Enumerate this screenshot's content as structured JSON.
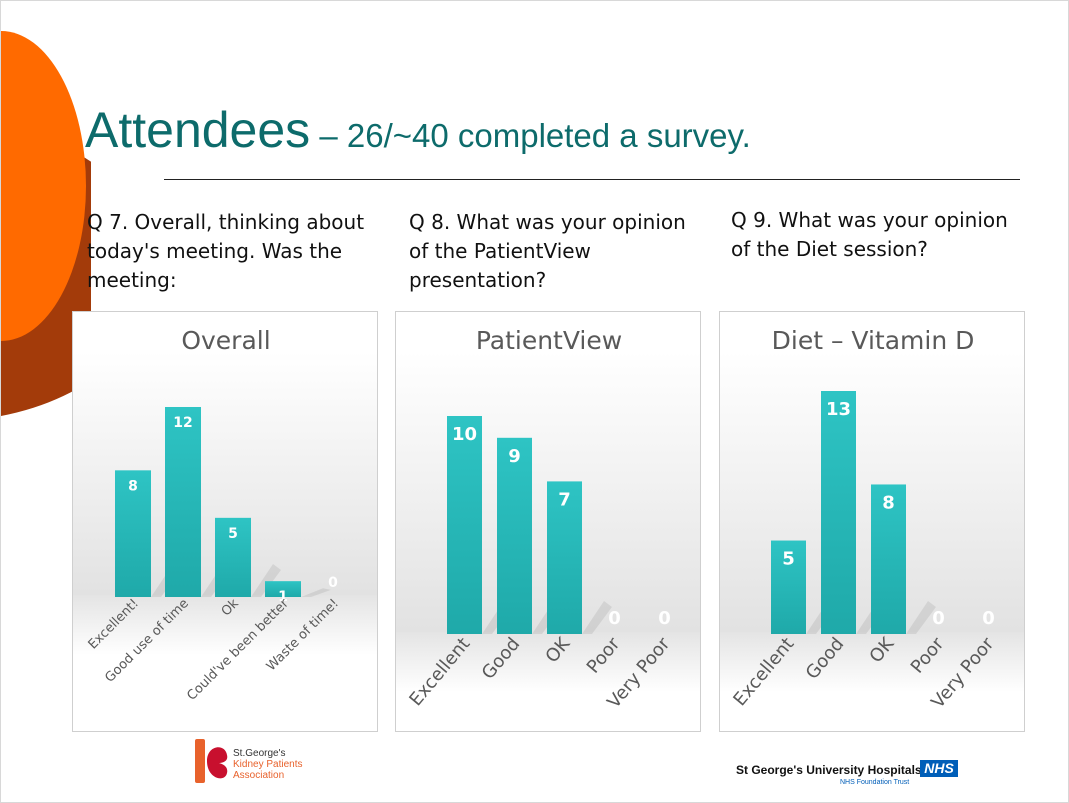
{
  "slide": {
    "title_main": "Attendees",
    "title_sub": " – 26/~40 completed a survey.",
    "questions": [
      "Q 7. Overall, thinking about today's meeting. Was the meeting:",
      "Q 8. What was your opinion of the PatientView presentation?",
      "Q 9. What was your opinion of the Diet session?"
    ],
    "colors": {
      "title": "#0d6b6b",
      "bar": "#2ec4c4",
      "orange": "#ff6a00",
      "rust": "#a33b0a"
    }
  },
  "chart_data": [
    {
      "type": "bar",
      "title": "Overall",
      "categories": [
        "Excellent!",
        "Good use of time",
        "Ok",
        "Could've been better",
        "Waste of time!"
      ],
      "values": [
        8,
        12,
        5,
        1,
        0
      ],
      "ylim": [
        0,
        12
      ],
      "grid": false,
      "data_labels": true
    },
    {
      "type": "bar",
      "title": "PatientView",
      "categories": [
        "Excellent",
        "Good",
        "OK",
        "Poor",
        "Very Poor"
      ],
      "values": [
        10,
        9,
        7,
        0,
        0
      ],
      "ylim": [
        0,
        10
      ],
      "grid": false,
      "data_labels": true
    },
    {
      "type": "bar",
      "title": "Diet – Vitamin D",
      "categories": [
        "Excellent",
        "Good",
        "OK",
        "Poor",
        "Very Poor"
      ],
      "values": [
        5,
        13,
        8,
        0,
        0
      ],
      "ylim": [
        0,
        13
      ],
      "grid": false,
      "data_labels": true
    }
  ],
  "logos": {
    "ska_line1": "St.George's",
    "ska_line2": "Kidney Patients",
    "ska_line3": "Association",
    "trust_name": "St George's University Hospitals",
    "nhs_badge": "NHS",
    "trust_sub": "NHS Foundation Trust"
  }
}
